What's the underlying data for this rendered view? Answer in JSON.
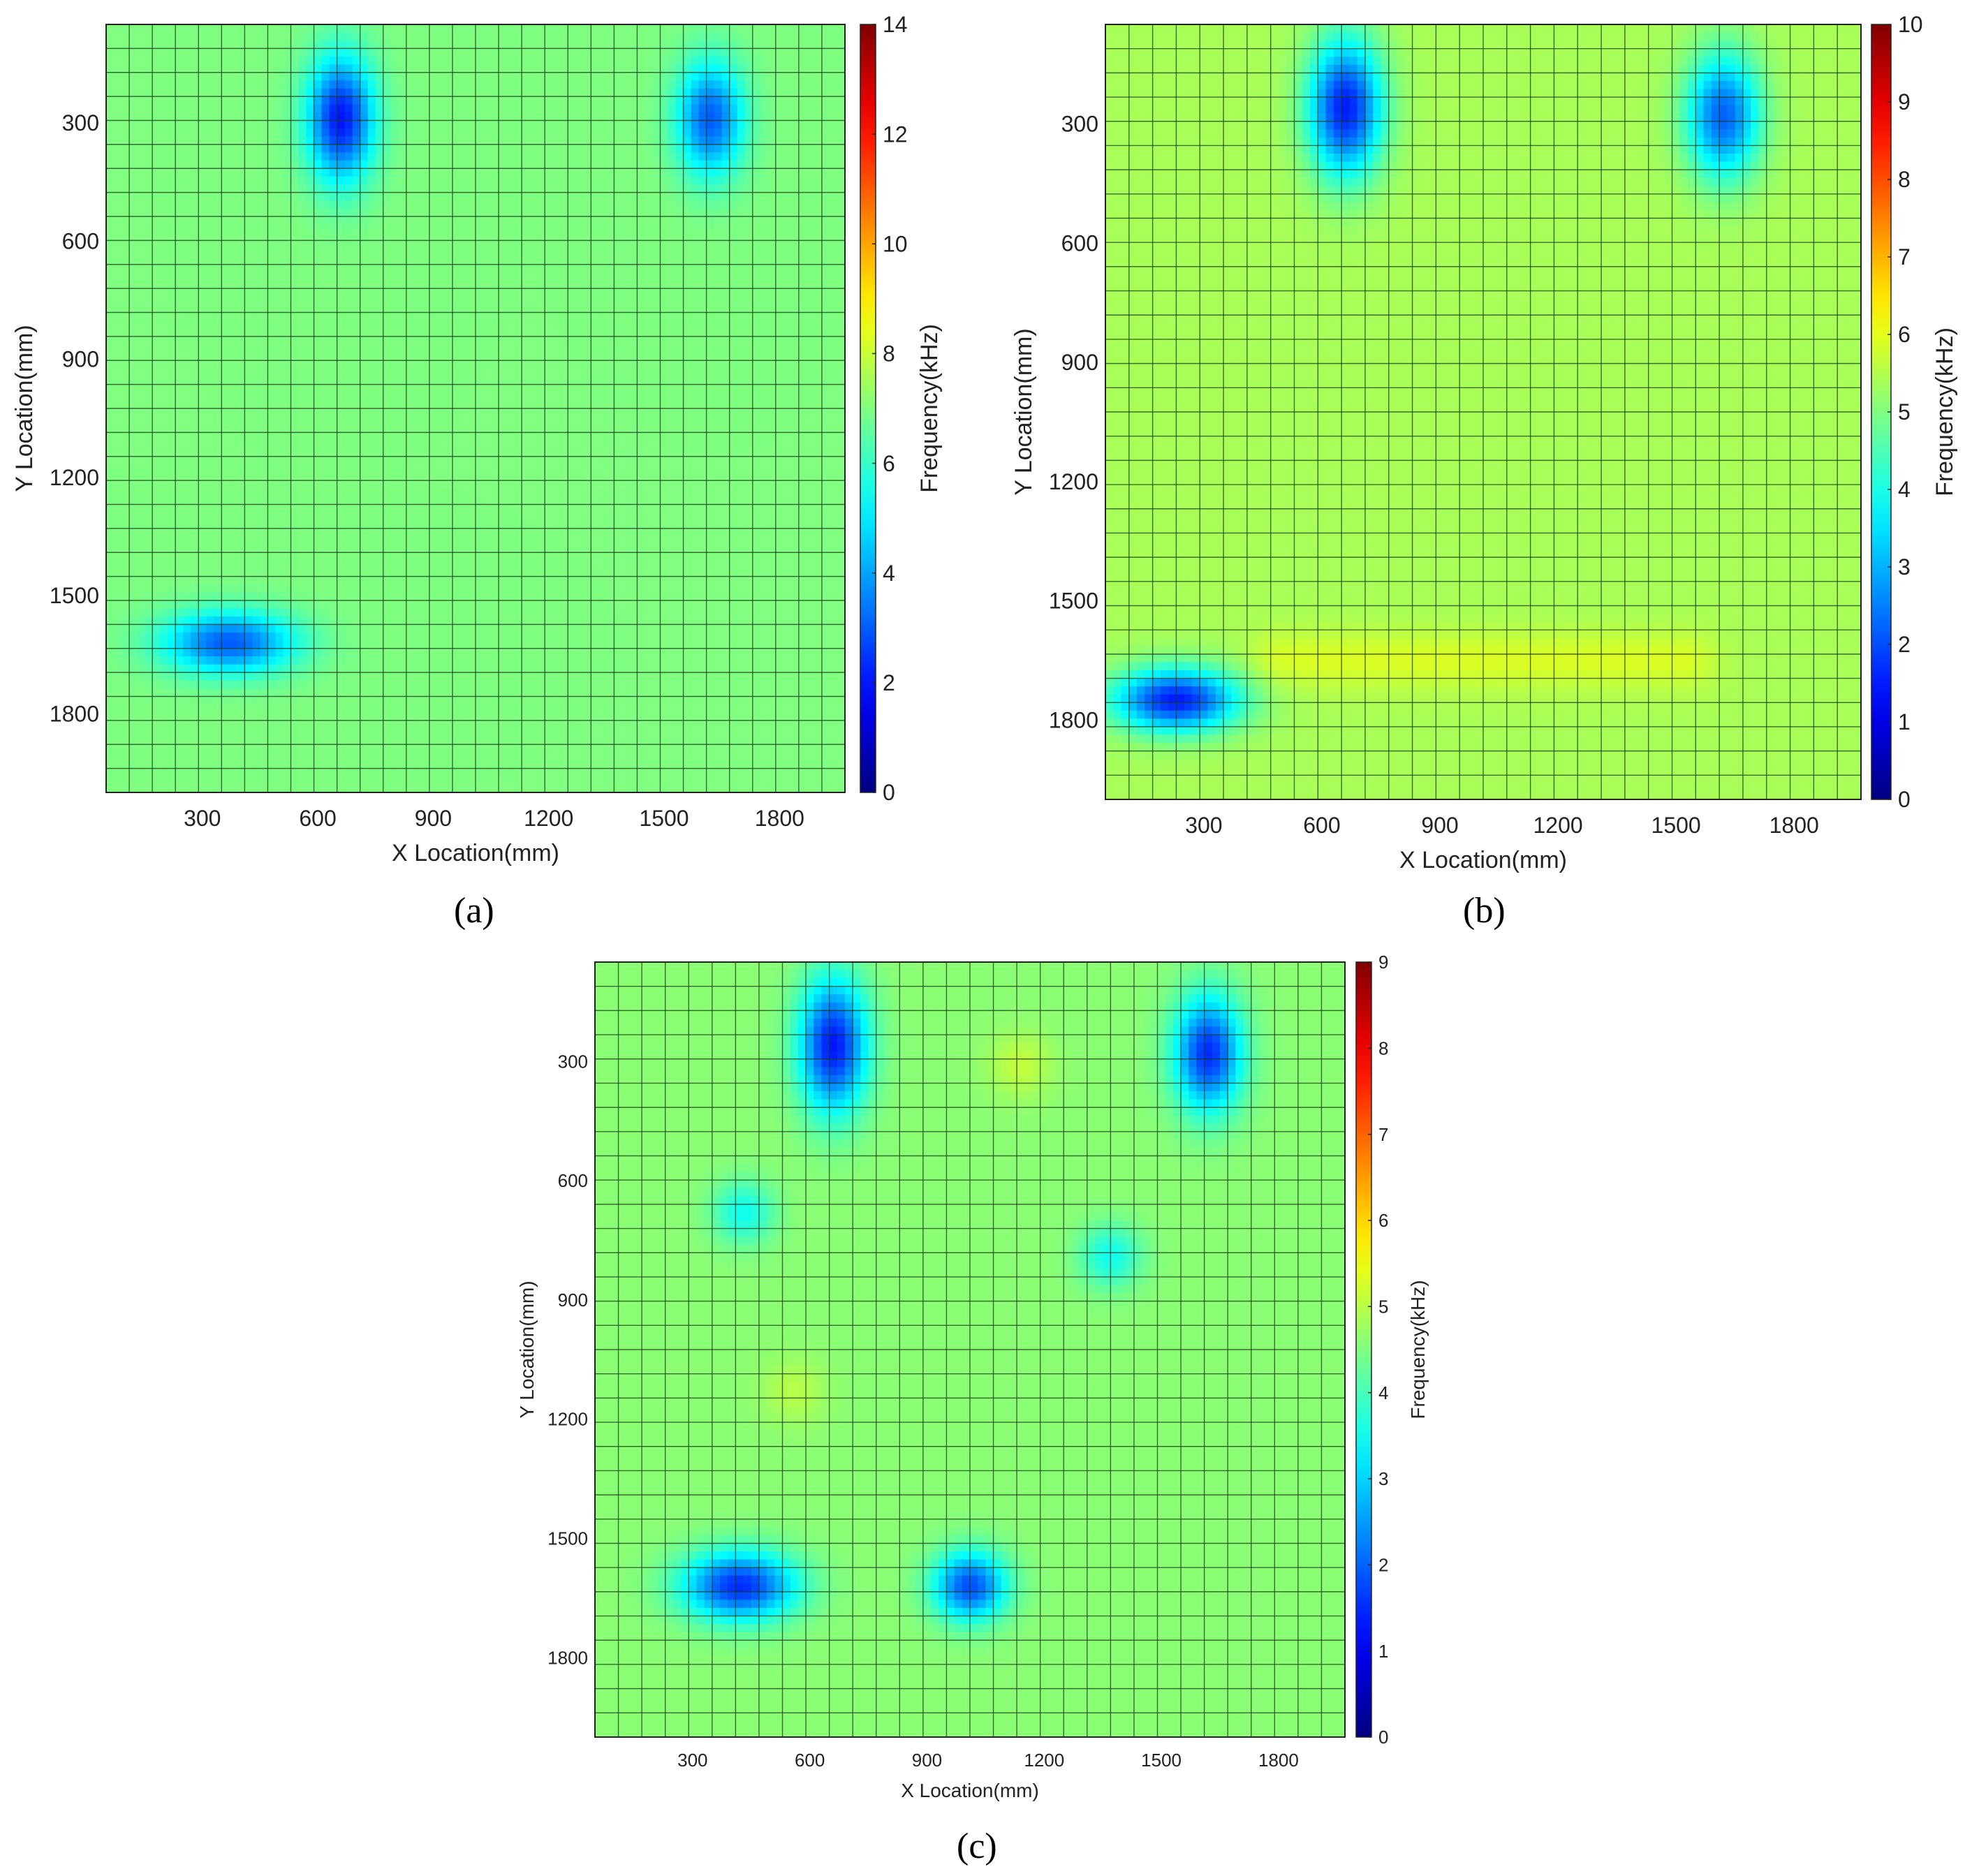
{
  "figure": {
    "panel_labels": [
      "(a)",
      "(b)",
      "(c)"
    ]
  },
  "colormap": "jet",
  "chart_data": [
    {
      "type": "heatmap",
      "panel": "(a)",
      "xlabel": "X Location(mm)",
      "ylabel": "Y Location(mm)",
      "colorbar_label": "Frequency(kHz)",
      "xlim": [
        50,
        1970
      ],
      "ylim": [
        50,
        2000
      ],
      "xticks": [
        300,
        600,
        900,
        1200,
        1500,
        1800
      ],
      "yticks": [
        300,
        600,
        900,
        1200,
        1500,
        1800
      ],
      "clim": [
        0,
        14
      ],
      "cticks": [
        0,
        2,
        4,
        6,
        8,
        10,
        12,
        14
      ],
      "grid_cells": 32,
      "background_value": 7.0,
      "minima": [
        {
          "x": 660,
          "y": 290,
          "value": 2.0,
          "sx": 60,
          "sy": 110
        },
        {
          "x": 1620,
          "y": 290,
          "value": 3.0,
          "sx": 60,
          "sy": 100
        },
        {
          "x": 370,
          "y": 1620,
          "value": 3.0,
          "sx": 120,
          "sy": 55
        }
      ]
    },
    {
      "type": "heatmap",
      "panel": "(b)",
      "xlabel": "X Location(mm)",
      "ylabel": "Y Location(mm)",
      "colorbar_label": "Frequency(kHz)",
      "xlim": [
        50,
        1970
      ],
      "ylim": [
        50,
        2000
      ],
      "xticks": [
        300,
        600,
        900,
        1200,
        1500,
        1800
      ],
      "yticks": [
        300,
        600,
        900,
        1200,
        1500,
        1800
      ],
      "clim": [
        0,
        10
      ],
      "cticks": [
        0,
        1,
        2,
        3,
        4,
        5,
        6,
        7,
        8,
        9,
        10
      ],
      "grid_cells": 32,
      "background_value": 5.4,
      "minima": [
        {
          "x": 660,
          "y": 260,
          "value": 1.5,
          "sx": 65,
          "sy": 120
        },
        {
          "x": 1620,
          "y": 280,
          "value": 2.2,
          "sx": 65,
          "sy": 110
        },
        {
          "x": 230,
          "y": 1750,
          "value": 1.5,
          "sx": 110,
          "sy": 55
        }
      ],
      "highs": [
        {
          "x1": 500,
          "x2": 1520,
          "y": 1650,
          "value": 5.9
        }
      ]
    },
    {
      "type": "heatmap",
      "panel": "(c)",
      "xlabel": "X Location(mm)",
      "ylabel": "Y Location(mm)",
      "colorbar_label": "Frequency(kHz)",
      "xlim": [
        50,
        1970
      ],
      "ylim": [
        50,
        2000
      ],
      "xticks": [
        300,
        600,
        900,
        1200,
        1500,
        1800
      ],
      "yticks": [
        300,
        600,
        900,
        1200,
        1500,
        1800
      ],
      "clim": [
        0,
        9
      ],
      "cticks": [
        0,
        1,
        2,
        3,
        4,
        5,
        6,
        7,
        8,
        9
      ],
      "grid_cells": 32,
      "background_value": 4.6,
      "minima": [
        {
          "x": 660,
          "y": 260,
          "value": 1.3,
          "sx": 60,
          "sy": 115
        },
        {
          "x": 1620,
          "y": 280,
          "value": 1.5,
          "sx": 60,
          "sy": 100
        },
        {
          "x": 420,
          "y": 1620,
          "value": 1.5,
          "sx": 100,
          "sy": 60
        },
        {
          "x": 1010,
          "y": 1620,
          "value": 1.8,
          "sx": 65,
          "sy": 60
        },
        {
          "x": 430,
          "y": 680,
          "value": 3.5,
          "sx": 55,
          "sy": 55
        },
        {
          "x": 1370,
          "y": 790,
          "value": 3.5,
          "sx": 55,
          "sy": 55
        }
      ],
      "highs_points": [
        {
          "x": 1140,
          "y": 310,
          "value": 5.1
        },
        {
          "x": 560,
          "y": 1130,
          "value": 5.0
        }
      ]
    }
  ]
}
